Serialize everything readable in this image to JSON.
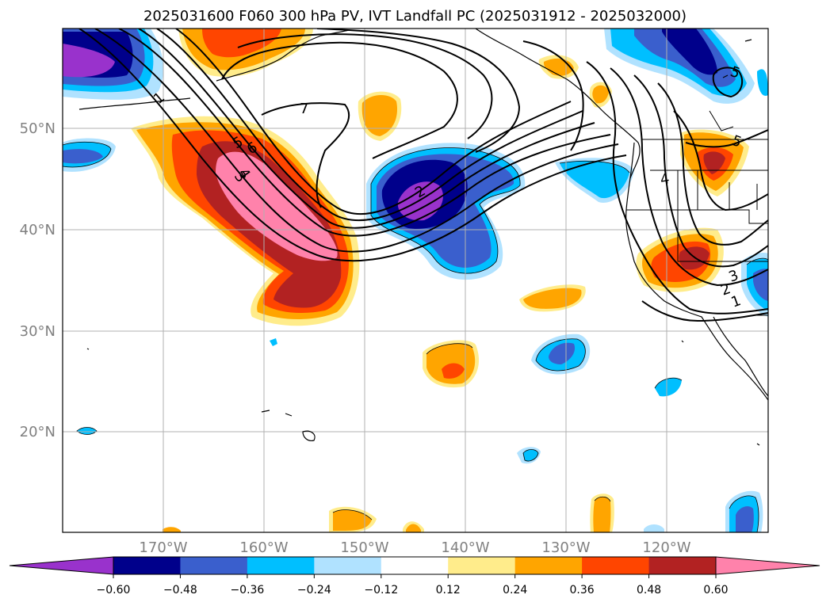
{
  "title": "2025031600 F060 300 hPa PV, IVT Landfall PC (2025031912 - 2025032000)",
  "latitude_labels": [
    "50°N",
    "40°N",
    "30°N",
    "20°N"
  ],
  "longitude_labels": [
    "170°W",
    "160°W",
    "150°W",
    "140°W",
    "130°W",
    "120°W"
  ],
  "colorbar": {
    "tick_labels": [
      "−0.60",
      "−0.48",
      "−0.36",
      "−0.24",
      "−0.12",
      "0.12",
      "0.24",
      "0.36",
      "0.48",
      "0.60"
    ],
    "colors": [
      "#9932cc",
      "#00008b",
      "#3a5fcd",
      "#00bfff",
      "#b0e2ff",
      "#ffffff",
      "#ffec8b",
      "#ffa500",
      "#ff4500",
      "#b22222",
      "#ff82ab"
    ]
  },
  "contour_labels": [
    "7",
    "6",
    "5",
    "4",
    "3",
    "2",
    "5",
    "5",
    "4",
    "3",
    "2",
    "1",
    "1"
  ]
}
